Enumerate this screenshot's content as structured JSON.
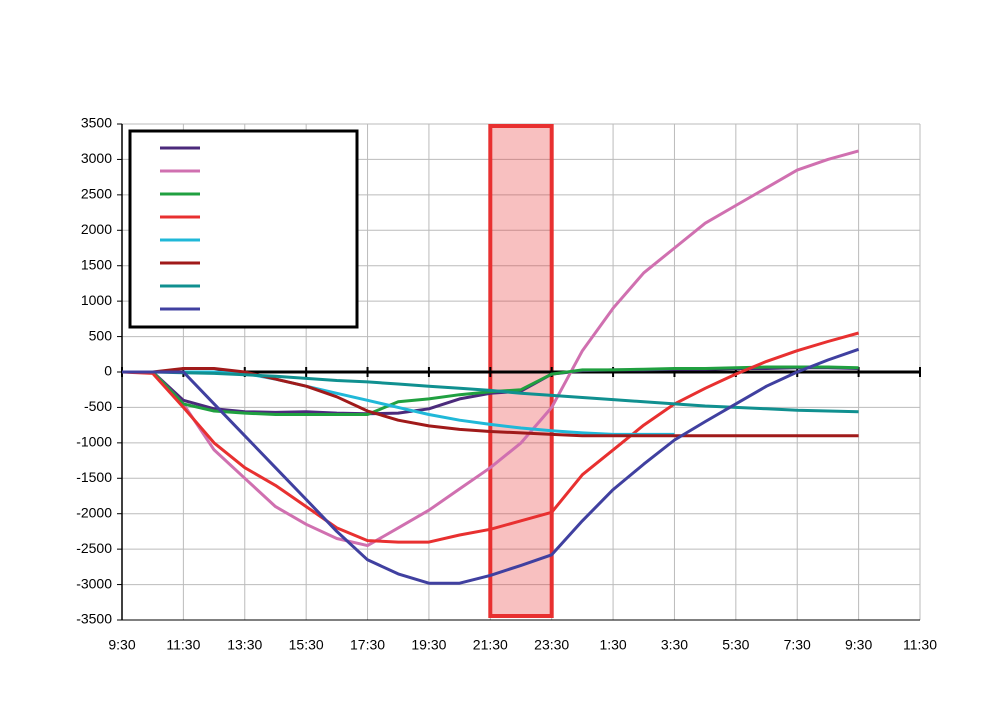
{
  "chart_data": {
    "type": "line",
    "categories": [
      "9:30",
      null,
      "11:30",
      null,
      "13:30",
      null,
      "15:30",
      null,
      "17:30",
      null,
      "19:30",
      null,
      "21:30",
      null,
      "23:30",
      null,
      "1:30",
      null,
      "3:30",
      null,
      "5:30",
      null,
      "7:30",
      null,
      "9:30",
      null,
      "11:30"
    ],
    "series": [
      {
        "color": "#4b2a7b",
        "values": [
          0,
          0,
          -400,
          -520,
          -560,
          -570,
          -560,
          -580,
          -590,
          -580,
          -520,
          -380,
          -300,
          -270,
          -30,
          20,
          30,
          30,
          40,
          40,
          50,
          50,
          60,
          60,
          50,
          null,
          null
        ]
      },
      {
        "color": "#d070b0",
        "values": [
          0,
          0,
          -450,
          -1100,
          -1500,
          -1900,
          -2150,
          -2350,
          -2450,
          -2200,
          -1950,
          -1650,
          -1350,
          -1000,
          -500,
          300,
          900,
          1400,
          1750,
          2100,
          2350,
          2600,
          2850,
          3000,
          3120,
          null,
          null
        ]
      },
      {
        "color": "#20a040",
        "values": [
          0,
          0,
          -450,
          -550,
          -580,
          -600,
          -600,
          -600,
          -600,
          -420,
          -380,
          -320,
          -280,
          -250,
          -30,
          30,
          30,
          40,
          50,
          50,
          60,
          70,
          70,
          70,
          60,
          null,
          null
        ]
      },
      {
        "color": "#e83030",
        "values": [
          0,
          -20,
          -500,
          -1000,
          -1350,
          -1600,
          -1900,
          -2200,
          -2380,
          -2400,
          -2400,
          -2300,
          -2220,
          -2100,
          -1980,
          -1450,
          -1100,
          -750,
          -450,
          -230,
          -30,
          150,
          300,
          430,
          550,
          null,
          null
        ]
      },
      {
        "color": "#20b8d8",
        "values": [
          0,
          0,
          0,
          0,
          -20,
          -100,
          -200,
          -300,
          -400,
          -500,
          -600,
          -680,
          -740,
          -790,
          -830,
          -860,
          -880,
          -880,
          -880,
          null,
          null,
          null,
          null,
          null,
          null,
          null,
          null
        ]
      },
      {
        "color": "#a01a1a",
        "values": [
          0,
          0,
          50,
          50,
          0,
          -100,
          -200,
          -350,
          -550,
          -680,
          -760,
          -810,
          -840,
          -860,
          -880,
          -900,
          -900,
          -900,
          -900,
          -900,
          -900,
          -900,
          -900,
          -900,
          -900,
          null,
          null
        ]
      },
      {
        "color": "#109090",
        "values": [
          0,
          0,
          -10,
          -20,
          -40,
          -60,
          -90,
          -120,
          -140,
          -170,
          -200,
          -230,
          -260,
          -300,
          -330,
          -360,
          -390,
          -420,
          -450,
          -480,
          -500,
          -520,
          -540,
          -550,
          -560,
          null,
          null
        ]
      },
      {
        "color": "#4040a0",
        "values": [
          0,
          0,
          0,
          -450,
          -900,
          -1350,
          -1800,
          -2250,
          -2650,
          -2850,
          -2980,
          -2980,
          -2870,
          -2730,
          -2580,
          -2100,
          -1660,
          -1300,
          -960,
          -700,
          -450,
          -200,
          0,
          170,
          320,
          null,
          null
        ]
      }
    ],
    "ylim": [
      -3500,
      3500
    ],
    "yticks": [
      -3500,
      -3000,
      -2500,
      -2000,
      -1500,
      -1000,
      -500,
      0,
      500,
      1000,
      1500,
      2000,
      2500,
      3000,
      3500
    ],
    "grid": true,
    "legend": "upper left",
    "highlight": {
      "from": "21:30",
      "to": "23:30",
      "color": "#e83030"
    }
  }
}
